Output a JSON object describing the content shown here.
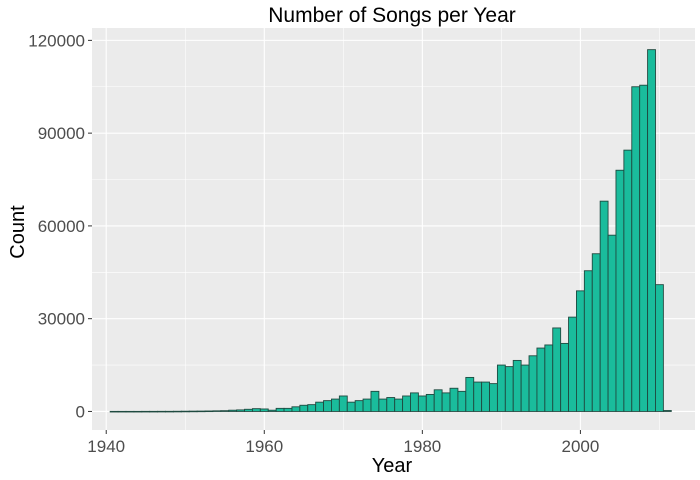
{
  "chart_data": {
    "type": "bar",
    "title": "Number of Songs per Year",
    "xlabel": "Year",
    "ylabel": "Count",
    "xlim": [
      1938.2,
      2014.5
    ],
    "ylim": [
      -6000,
      124000
    ],
    "xticks": [
      1940,
      1960,
      1980,
      2000
    ],
    "xtick_labels": [
      "1940",
      "1960",
      "1980",
      "2000"
    ],
    "yticks": [
      0,
      30000,
      60000,
      90000,
      120000
    ],
    "ytick_labels": [
      "0",
      "30000",
      "60000",
      "90000",
      "120000"
    ],
    "grid": true,
    "bin_width": 1,
    "colors": {
      "bar_fill": "#1ABC9C",
      "bar_stroke": "#1F4A40",
      "panel_bg": "#EBEBEB",
      "grid_major": "#FFFFFF",
      "text": "#000000",
      "tick_text": "#4D4D4D"
    },
    "x": [
      1941,
      1942,
      1943,
      1944,
      1945,
      1946,
      1947,
      1948,
      1949,
      1950,
      1951,
      1952,
      1953,
      1954,
      1955,
      1956,
      1957,
      1958,
      1959,
      1960,
      1961,
      1962,
      1963,
      1964,
      1965,
      1966,
      1967,
      1968,
      1969,
      1970,
      1971,
      1972,
      1973,
      1974,
      1975,
      1976,
      1977,
      1978,
      1979,
      1980,
      1981,
      1982,
      1983,
      1984,
      1985,
      1986,
      1987,
      1988,
      1989,
      1990,
      1991,
      1992,
      1993,
      1994,
      1995,
      1996,
      1997,
      1998,
      1999,
      2000,
      2001,
      2002,
      2003,
      2004,
      2005,
      2006,
      2007,
      2008,
      2009,
      2010,
      2011
    ],
    "values": [
      20,
      20,
      20,
      20,
      30,
      30,
      40,
      40,
      60,
      80,
      100,
      120,
      150,
      200,
      250,
      400,
      500,
      700,
      900,
      800,
      400,
      1000,
      1000,
      1500,
      2000,
      2200,
      3000,
      3500,
      4000,
      5000,
      3000,
      3500,
      4000,
      6500,
      4000,
      4500,
      4000,
      5000,
      6000,
      5000,
      5500,
      7000,
      6000,
      7500,
      6500,
      11000,
      9500,
      9500,
      9000,
      15000,
      14500,
      16500,
      15000,
      18000,
      20500,
      21500,
      27000,
      22000,
      30500,
      39000,
      45500,
      51000,
      68000,
      57000,
      78000,
      84500,
      105000,
      105500,
      117000,
      41000,
      300
    ]
  }
}
